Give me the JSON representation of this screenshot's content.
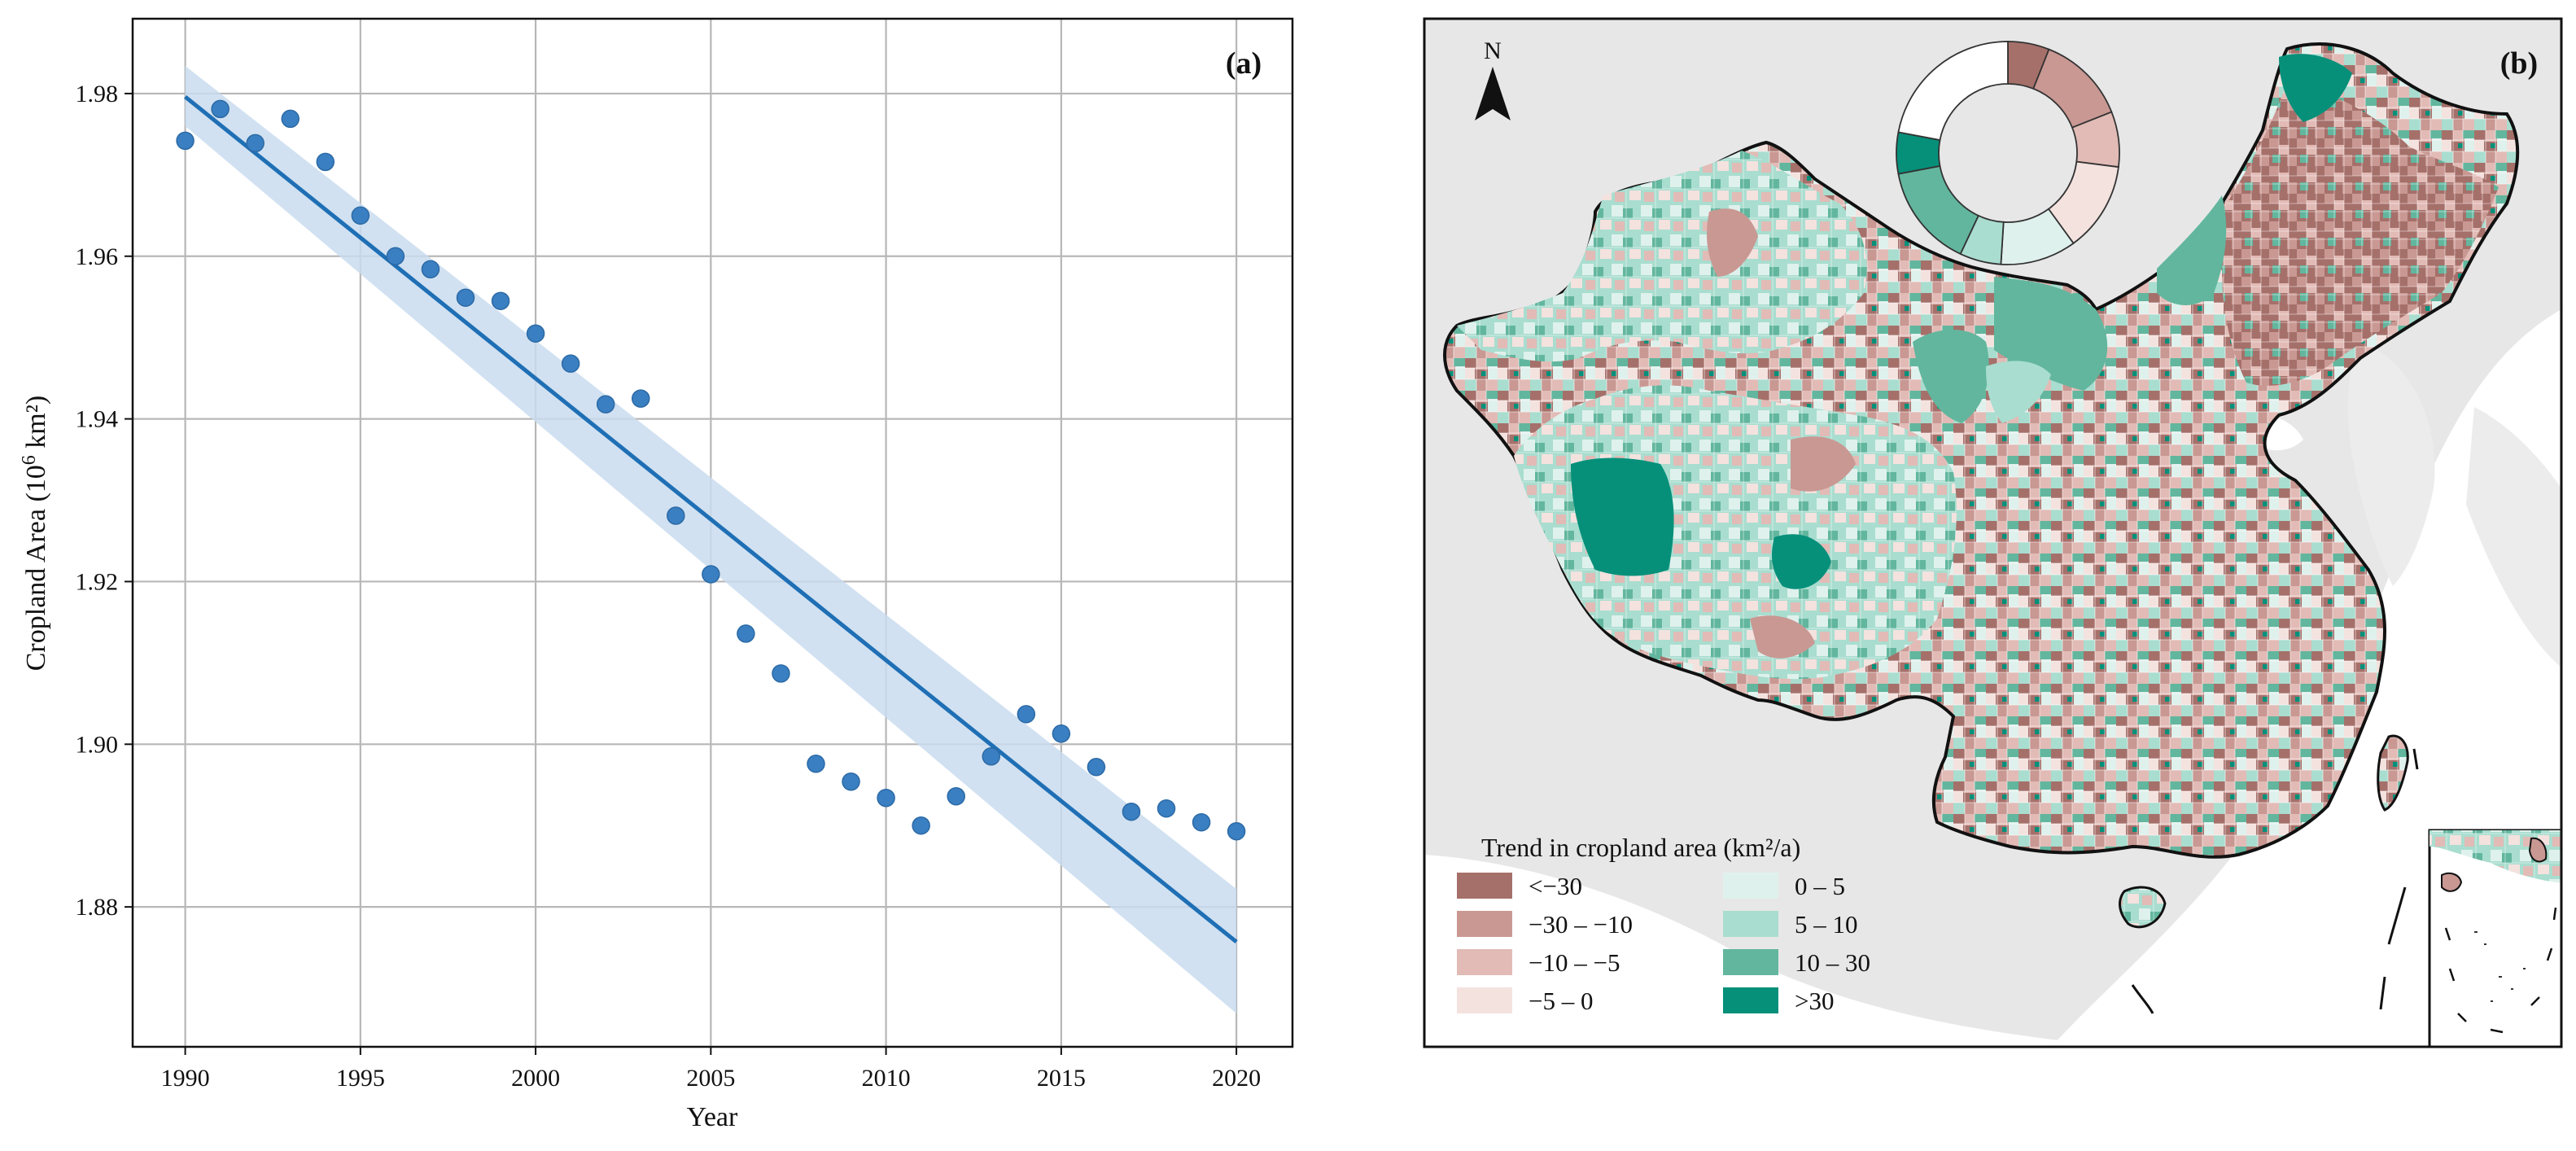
{
  "chart_data": [
    {
      "type": "scatter",
      "panel_label": "(a)",
      "xlabel": "Year",
      "ylabel_base": "Cropland Area (10",
      "ylabel_exp": "6",
      "ylabel_unit": " km²)",
      "xlim": [
        1988.5,
        2021.6
      ],
      "ylim": [
        1.8628,
        1.9892
      ],
      "xticks": [
        1990,
        1995,
        2000,
        2005,
        2010,
        2015,
        2020
      ],
      "yticks": [
        1.88,
        1.9,
        1.92,
        1.94,
        1.96,
        1.98
      ],
      "ytick_labels": [
        "1.88",
        "1.90",
        "1.92",
        "1.94",
        "1.96",
        "1.98"
      ],
      "grid": true,
      "x": [
        1990,
        1991,
        1992,
        1993,
        1994,
        1995,
        1996,
        1997,
        1998,
        1999,
        2000,
        2001,
        2002,
        2003,
        2004,
        2005,
        2006,
        2007,
        2008,
        2009,
        2010,
        2011,
        2012,
        2013,
        2014,
        2015,
        2016,
        2017,
        2018,
        2019,
        2020
      ],
      "y": [
        1.9742,
        1.9781,
        1.9739,
        1.9769,
        1.9716,
        1.965,
        1.96,
        1.9584,
        1.9549,
        1.9545,
        1.9505,
        1.9468,
        1.9418,
        1.9425,
        1.9281,
        1.9209,
        1.9136,
        1.9087,
        1.8976,
        1.8954,
        1.8934,
        1.89,
        1.8936,
        1.8985,
        1.9037,
        1.9013,
        1.8972,
        1.8917,
        1.8921,
        1.8904,
        1.8893
      ],
      "trend": {
        "x": [
          1990,
          2020
        ],
        "y": [
          1.9796,
          1.8757
        ]
      },
      "confidence_band": {
        "x": [
          1990,
          2020
        ],
        "upper": [
          1.9834,
          1.8822
        ],
        "lower": [
          1.976,
          1.8669
        ]
      },
      "colors": {
        "points": "#3a7fc1",
        "line": "#1f6fb5",
        "band": "#c9dcef",
        "grid": "#b7b7b7"
      }
    },
    {
      "type": "choropleth",
      "panel_label": "(b)",
      "north_label": "N",
      "legend_title": "Trend in cropland area (km²/a)",
      "classes": [
        {
          "label": "<−30",
          "color": "#a6706a"
        },
        {
          "label": "−30 – −10",
          "color": "#c99893"
        },
        {
          "label": "−10 – −5",
          "color": "#e2bbb6"
        },
        {
          "label": "−5 – 0",
          "color": "#f4e2df"
        },
        {
          "label": "0 – 5",
          "color": "#dff1ec"
        },
        {
          "label": "5 – 10",
          "color": "#a9ddcf"
        },
        {
          "label": "10 – 30",
          "color": "#62b69e"
        },
        {
          "label": ">30",
          "color": "#06907a"
        }
      ],
      "donut_shares": [
        0.06,
        0.13,
        0.08,
        0.13,
        0.11,
        0.06,
        0.15,
        0.06,
        0.22
      ],
      "donut_colors": [
        "#a6706a",
        "#c99893",
        "#e2bbb6",
        "#f4e2df",
        "#dff1ec",
        "#a9ddcf",
        "#62b69e",
        "#06907a",
        "#ffffff"
      ],
      "colors": {
        "background": "#e7e7e7",
        "border": "#111111"
      }
    }
  ]
}
